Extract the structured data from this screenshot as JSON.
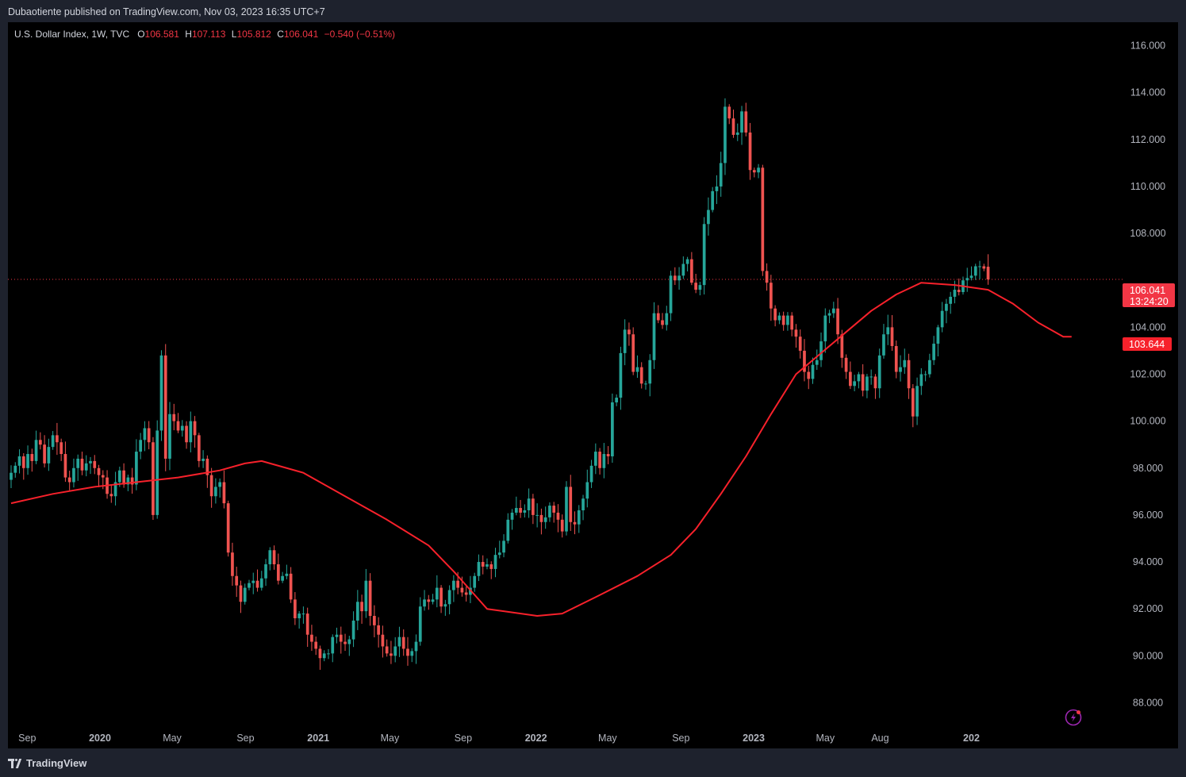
{
  "header": {
    "published_text": "Dubaotiente published on TradingView.com, Nov 03, 2023 16:35 UTC+7"
  },
  "legend": {
    "symbol": "U.S. Dollar Index, 1W, TVC",
    "open_label": "O",
    "open": "106.581",
    "high_label": "H",
    "high": "107.113",
    "low_label": "L",
    "low": "105.812",
    "close_label": "C",
    "close": "106.041",
    "change": "−0.540 (−0.51%)"
  },
  "price_tags": {
    "last_price": "106.041",
    "countdown": "13:24:20",
    "ma_value": "103.644"
  },
  "footer": {
    "brand": "TradingView"
  },
  "colors": {
    "up": "#26a69a",
    "down": "#ef5350",
    "ma": "#f7212b",
    "last_line": "#f23645",
    "background": "#000000"
  },
  "chart_data": {
    "type": "candlestick",
    "timeframe": "1W",
    "ylim": [
      87,
      117
    ],
    "yticks": [
      88,
      90,
      92,
      94,
      96,
      98,
      100,
      102,
      104,
      106,
      108,
      110,
      112,
      114,
      116
    ],
    "ytick_labels": [
      "88.000",
      "90.000",
      "92.000",
      "94.000",
      "96.000",
      "98.000",
      "100.000",
      "102.000",
      "104.000",
      "",
      "108.000",
      "110.000",
      "112.000",
      "114.000",
      "116.000"
    ],
    "x_start": "2019-08-05",
    "xticks": [
      {
        "label": "Sep",
        "date": "2019-09-01"
      },
      {
        "label": "2020",
        "date": "2020-01-01",
        "bold": true
      },
      {
        "label": "May",
        "date": "2020-05-01"
      },
      {
        "label": "Sep",
        "date": "2020-09-01"
      },
      {
        "label": "2021",
        "date": "2021-01-01",
        "bold": true
      },
      {
        "label": "May",
        "date": "2021-05-01"
      },
      {
        "label": "Sep",
        "date": "2021-09-01"
      },
      {
        "label": "2022",
        "date": "2022-01-01",
        "bold": true
      },
      {
        "label": "May",
        "date": "2022-05-01"
      },
      {
        "label": "Sep",
        "date": "2022-09-01"
      },
      {
        "label": "2023",
        "date": "2023-01-01",
        "bold": true
      },
      {
        "label": "May",
        "date": "2023-05-01"
      },
      {
        "label": "Aug",
        "date": "2023-08-01"
      },
      {
        "label": "202",
        "date": "2024-01-01",
        "bold": true
      }
    ],
    "close_series": [
      97.8,
      98.1,
      98.5,
      98.0,
      98.6,
      98.3,
      99.2,
      99.0,
      98.2,
      98.9,
      99.4,
      99.1,
      98.6,
      97.6,
      97.4,
      98.0,
      98.4,
      97.9,
      98.2,
      98.3,
      98.0,
      97.7,
      97.6,
      96.9,
      96.8,
      97.4,
      97.9,
      97.3,
      97.6,
      97.3,
      98.7,
      99.2,
      99.7,
      99.1,
      96.0,
      99.6,
      102.8,
      98.4,
      100.3,
      100.0,
      99.6,
      99.8,
      99.1,
      100.0,
      99.4,
      98.3,
      98.4,
      97.7,
      96.8,
      97.2,
      97.4,
      96.5,
      94.4,
      93.4,
      93.0,
      92.3,
      92.9,
      93.1,
      93.2,
      92.9,
      93.3,
      93.9,
      94.5,
      93.9,
      93.2,
      93.4,
      93.5,
      92.4,
      91.6,
      91.8,
      91.8,
      90.9,
      90.6,
      90.3,
      89.9,
      90.1,
      90.1,
      90.8,
      90.9,
      90.6,
      90.5,
      90.7,
      91.5,
      92.3,
      91.9,
      93.2,
      91.7,
      91.3,
      90.9,
      90.4,
      90.1,
      90.0,
      90.4,
      90.8,
      90.3,
      90.0,
      90.2,
      90.6,
      92.1,
      92.4,
      92.3,
      92.4,
      92.9,
      92.1,
      92.2,
      92.8,
      93.2,
      92.9,
      92.7,
      92.6,
      92.9,
      93.4,
      94.0,
      93.8,
      93.9,
      93.7,
      94.3,
      94.4,
      94.9,
      95.8,
      96.1,
      96.3,
      96.1,
      96.2,
      96.7,
      96.0,
      96.0,
      95.7,
      95.9,
      96.4,
      96.1,
      95.8,
      95.3,
      97.2,
      95.7,
      95.6,
      96.2,
      96.7,
      97.4,
      98.1,
      98.7,
      98.0,
      98.6,
      98.5,
      100.8,
      101.0,
      102.9,
      103.9,
      103.7,
      102.1,
      102.3,
      101.6,
      101.6,
      102.6,
      104.6,
      104.3,
      104.1,
      104.6,
      106.2,
      106.0,
      106.2,
      106.7,
      106.9,
      105.9,
      105.6,
      105.8,
      108.4,
      109.0,
      109.8,
      110.0,
      111.0,
      113.4,
      112.9,
      112.2,
      112.3,
      113.2,
      112.3,
      110.7,
      110.6,
      110.8,
      106.4,
      105.9,
      104.8,
      104.3,
      104.5,
      104.1,
      104.5,
      103.9,
      103.6,
      103.0,
      102.1,
      101.8,
      102.4,
      102.6,
      103.4,
      104.5,
      104.6,
      104.8,
      103.7,
      102.7,
      102.1,
      101.5,
      101.7,
      102.0,
      101.3,
      101.9,
      101.9,
      101.4,
      102.8,
      103.7,
      104.0,
      103.2,
      102.1,
      102.3,
      102.6,
      101.4,
      100.2,
      101.5,
      102.0,
      102.0,
      102.6,
      103.3,
      104.0,
      104.7,
      105.0,
      105.3,
      105.6,
      105.5,
      106.0,
      106.1,
      106.2,
      106.6,
      106.6,
      106.5,
      106.0
    ],
    "current_candle": {
      "open": 106.581,
      "high": 107.113,
      "low": 105.812,
      "close": 106.041
    },
    "moving_average": {
      "color": "#f7212b",
      "current_value": 103.644,
      "points": [
        [
          0,
          96.5
        ],
        [
          10,
          96.9
        ],
        [
          20,
          97.2
        ],
        [
          30,
          97.4
        ],
        [
          40,
          97.6
        ],
        [
          50,
          97.9
        ],
        [
          56,
          98.2
        ],
        [
          60,
          98.3
        ],
        [
          70,
          97.8
        ],
        [
          80,
          96.8
        ],
        [
          90,
          95.8
        ],
        [
          100,
          94.7
        ],
        [
          106,
          93.6
        ],
        [
          110,
          92.8
        ],
        [
          114,
          92.0
        ],
        [
          118,
          91.9
        ],
        [
          126,
          91.7
        ],
        [
          132,
          91.8
        ],
        [
          140,
          92.5
        ],
        [
          150,
          93.4
        ],
        [
          158,
          94.3
        ],
        [
          164,
          95.4
        ],
        [
          170,
          96.9
        ],
        [
          176,
          98.5
        ],
        [
          182,
          100.3
        ],
        [
          188,
          102.0
        ],
        [
          194,
          102.9
        ],
        [
          200,
          103.8
        ],
        [
          206,
          104.7
        ],
        [
          212,
          105.4
        ],
        [
          218,
          105.9
        ],
        [
          226,
          105.8
        ],
        [
          234,
          105.6
        ],
        [
          240,
          105.0
        ],
        [
          246,
          104.2
        ],
        [
          252,
          103.6
        ],
        [
          254,
          103.6
        ]
      ]
    }
  }
}
